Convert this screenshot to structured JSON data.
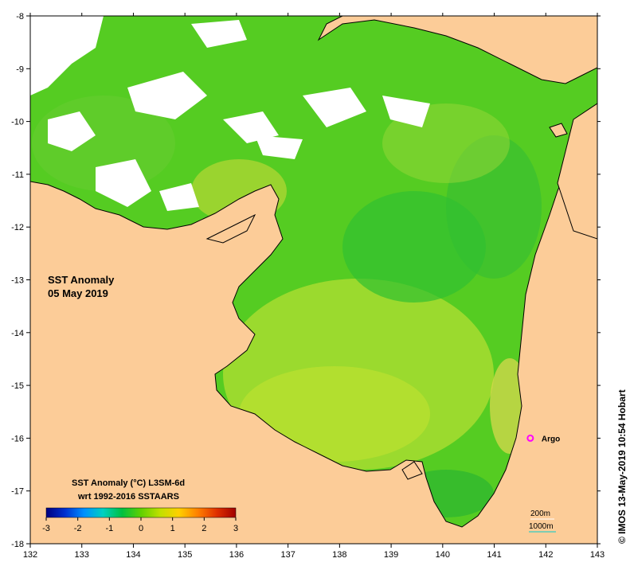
{
  "map": {
    "title_line1": "SST Anomaly",
    "title_line2": "05 May 2019",
    "credit": "© IMOS 13-May-2019 10:54 Hobart",
    "extent": {
      "lon": [
        132,
        143
      ],
      "lat": [
        -18,
        -8
      ]
    },
    "x_ticks": [
      "132",
      "133",
      "134",
      "135",
      "136",
      "137",
      "138",
      "139",
      "140",
      "141",
      "142",
      "143"
    ],
    "y_ticks": [
      "-8",
      "-9",
      "-10",
      "-11",
      "-12",
      "-13",
      "-14",
      "-15",
      "-16",
      "-17",
      "-18"
    ],
    "land_color": "#fccc98",
    "ocean_color": "#55cc22",
    "no_data_color": "#ffffff"
  },
  "colorbar": {
    "title_line1": "SST Anomaly (°C) L3SM-6d",
    "title_line2": "wrt 1992-2016 SSTAARS",
    "ticks": [
      "-3",
      "-2",
      "-1",
      "0",
      "1",
      "2",
      "3"
    ],
    "colors": [
      "#000080",
      "#0030d0",
      "#0090ff",
      "#00d0c0",
      "#00c040",
      "#60d000",
      "#c0e000",
      "#ffd000",
      "#ff8000",
      "#e03000",
      "#a00000"
    ]
  },
  "marker": {
    "label": "Argo",
    "color": "#ff00ff",
    "lon": 141.7,
    "lat": -16.0
  },
  "contours": {
    "c200_label": "200m",
    "c1000_label": "1000m"
  }
}
